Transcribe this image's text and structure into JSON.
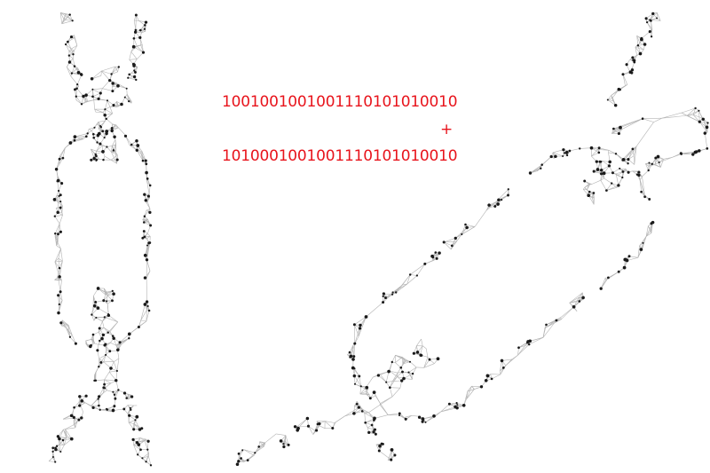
{
  "binary_sum": {
    "line1": "1001001001001110101010010",
    "operator": "+",
    "line2": "1010001001001110101010010",
    "color": "#e8141c"
  },
  "illustration": {
    "subject": "polygonal wireframe chain",
    "left_chain_links": 3,
    "right_chain_links": 3,
    "mesh_color": "#b4b4b4",
    "node_color": "#1a1a1a"
  }
}
